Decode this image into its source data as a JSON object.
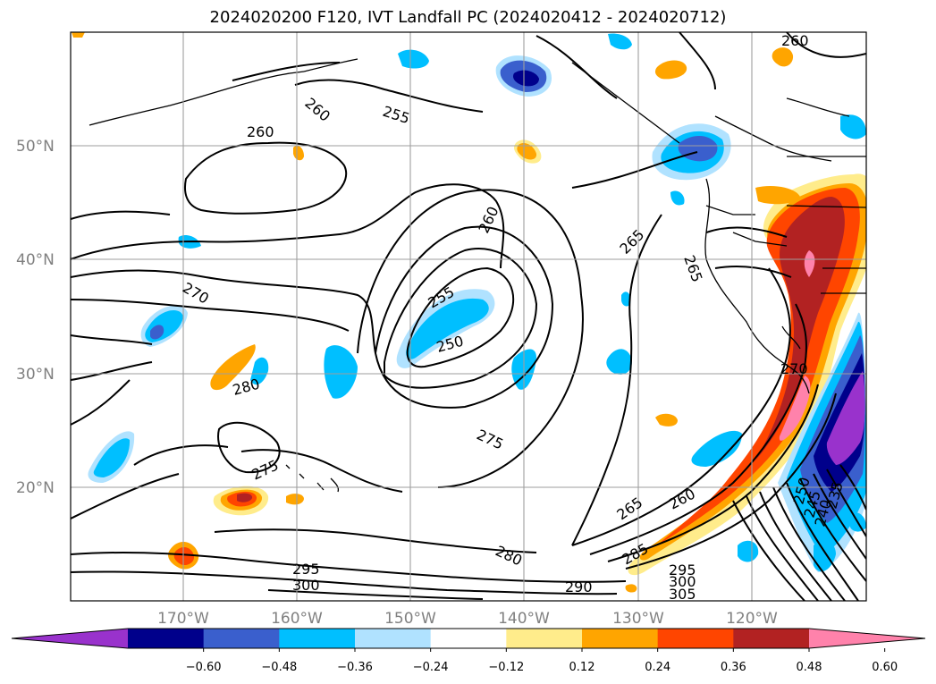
{
  "title": "2024020200 F120, IVT Landfall PC (2024020412 - 2024020712)",
  "lat_labels": [
    "50°N",
    "40°N",
    "30°N",
    "20°N"
  ],
  "lon_labels": [
    "170°W",
    "160°W",
    "150°W",
    "140°W",
    "130°W",
    "120°W"
  ],
  "contour_labels": [
    "260",
    "255",
    "260",
    "260",
    "260",
    "265",
    "265",
    "270",
    "255",
    "250",
    "270",
    "280",
    "275",
    "275",
    "265",
    "260",
    "280",
    "295",
    "300",
    "290",
    "295",
    "300",
    "305",
    "285",
    "235",
    "240",
    "245",
    "250"
  ],
  "colorbar": {
    "ticks": [
      "−0.60",
      "−0.48",
      "−0.36",
      "−0.24",
      "−0.12",
      "0.12",
      "0.24",
      "0.36",
      "0.48",
      "0.60"
    ],
    "colors": [
      "#9932cc",
      "#00008b",
      "#3a5fcd",
      "#00bfff",
      "#b0e2ff",
      "#ffffff",
      "#ffec8b",
      "#ffa500",
      "#ff4500",
      "#b22222",
      "#ff82ab"
    ]
  }
}
